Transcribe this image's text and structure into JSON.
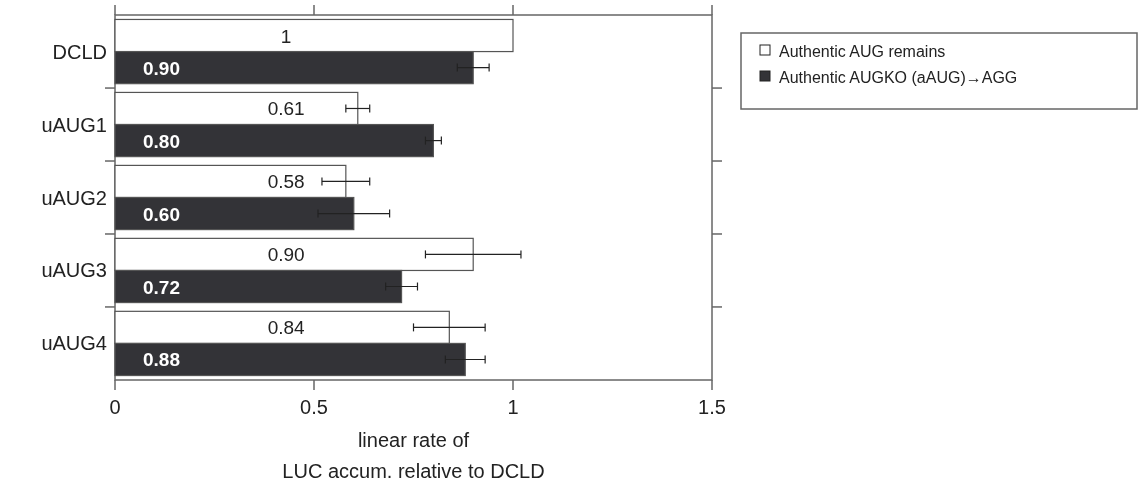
{
  "chart_data": {
    "type": "bar",
    "orientation": "horizontal",
    "categories": [
      "DCLD",
      "uAUG1",
      "uAUG2",
      "uAUG3",
      "uAUG4"
    ],
    "series": [
      {
        "name": "Authentic AUG remains",
        "color": "#ffffff",
        "values": [
          1,
          0.61,
          0.58,
          0.9,
          0.84
        ],
        "value_labels": [
          "1",
          "0.61",
          "0.58",
          "0.90",
          "0.84"
        ],
        "errors": [
          null,
          0.03,
          0.06,
          0.12,
          0.09
        ]
      },
      {
        "name": "Authentic AUGKO (aAUG)→AGG",
        "color": "#333337",
        "values": [
          0.9,
          0.8,
          0.6,
          0.72,
          0.88
        ],
        "value_labels": [
          "0.90",
          "0.80",
          "0.60",
          "0.72",
          "0.88"
        ],
        "errors": [
          0.04,
          0.02,
          0.09,
          0.04,
          0.05
        ]
      }
    ],
    "xlim": [
      0,
      1.5
    ],
    "xticks": [
      0,
      0.5,
      1,
      1.5
    ],
    "xlabel": "linear rate of\nLUC accum. relative to DCLD",
    "legend": "right"
  }
}
